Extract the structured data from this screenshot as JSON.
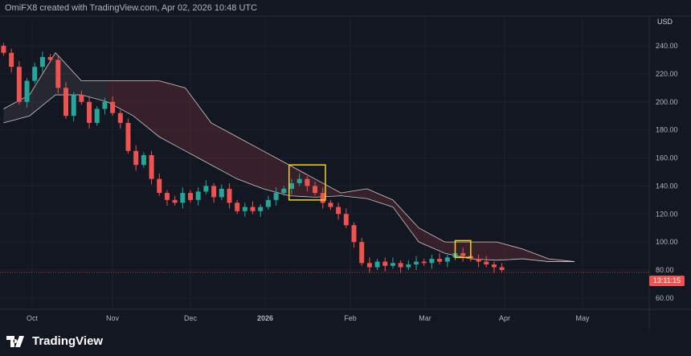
{
  "header": {
    "attribution": "OmiFX8 created with TradingView.com, Apr 02, 2026 10:48 UTC"
  },
  "currency": "USD",
  "price_label": "13:11:15",
  "brand": "TradingView",
  "colors": {
    "up": "#26a69a",
    "down": "#ef5350",
    "cloud_red": "rgba(120,50,55,0.35)",
    "cloud_gray": "rgba(120,120,120,0.18)",
    "highlight": "#f5d31f"
  },
  "chart_data": {
    "type": "candlestick",
    "title": "",
    "candle_step_days": 3,
    "first_candle": "Sep 20",
    "closes": [
      235,
      225,
      200,
      215,
      225,
      232,
      230,
      210,
      190,
      205,
      200,
      185,
      195,
      200,
      192,
      185,
      165,
      155,
      162,
      145,
      135,
      130,
      128,
      135,
      130,
      136,
      140,
      132,
      138,
      128,
      122,
      125,
      122,
      125,
      130,
      135,
      138,
      142,
      145,
      140,
      135,
      128,
      125,
      120,
      112,
      100,
      85,
      82,
      86,
      83,
      85,
      82,
      84,
      86,
      85,
      88,
      86,
      89,
      92,
      90,
      88,
      86,
      84,
      82,
      80
    ],
    "ichimoku_cloud": {
      "step_days": 10,
      "upper": [
        195,
        205,
        235,
        215,
        215,
        215,
        215,
        210,
        185,
        175,
        165,
        155,
        145,
        135,
        138,
        130,
        110,
        100,
        100,
        100,
        95,
        88,
        86
      ],
      "lower": [
        185,
        190,
        205,
        205,
        200,
        190,
        175,
        165,
        155,
        145,
        138,
        133,
        132,
        133,
        131,
        125,
        100,
        92,
        88,
        87,
        88,
        86,
        86
      ]
    },
    "highlights": [
      {
        "from_day": 110,
        "to_day": 124,
        "low": 130,
        "high": 155
      },
      {
        "from_day": 174,
        "to_day": 180,
        "low": 89,
        "high": 101
      }
    ],
    "x_ticks": [
      "Oct",
      "Nov",
      "Dec",
      "2026",
      "Feb",
      "Mar",
      "Apr",
      "May"
    ],
    "y_ticks": [
      60,
      80,
      100,
      120,
      140,
      160,
      180,
      200,
      220,
      240
    ],
    "y_tick_labels": [
      "60.00",
      "80.00",
      "100.00",
      "120.00",
      "140.00",
      "160.00",
      "180.00",
      "200.00",
      "220.00",
      "240.00"
    ],
    "ylim": [
      50,
      255
    ]
  }
}
